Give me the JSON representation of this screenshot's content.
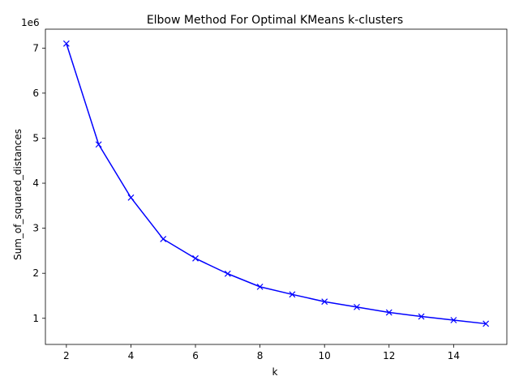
{
  "chart_data": {
    "type": "line",
    "title": "Elbow Method For Optimal KMeans k-clusters",
    "xlabel": "k",
    "ylabel": "Sum_of_squared_distances",
    "y_offset_label": "1e6",
    "x_ticks": [
      "2",
      "4",
      "6",
      "8",
      "10",
      "12",
      "14"
    ],
    "y_ticks": [
      "1",
      "2",
      "3",
      "4",
      "5",
      "6",
      "7"
    ],
    "xlim": [
      1.35,
      15.65
    ],
    "ylim": [
      0.42,
      7.42
    ],
    "grid": false,
    "line_color": "#0000ff",
    "marker": "x",
    "series": [
      {
        "x": [
          2,
          3,
          4,
          5,
          6,
          7,
          8,
          9,
          10,
          11,
          12,
          13,
          14,
          15
        ],
        "values": [
          7.1,
          4.86,
          3.68,
          2.76,
          2.33,
          1.99,
          1.7,
          1.53,
          1.37,
          1.25,
          1.13,
          1.04,
          0.96,
          0.88
        ]
      }
    ]
  }
}
